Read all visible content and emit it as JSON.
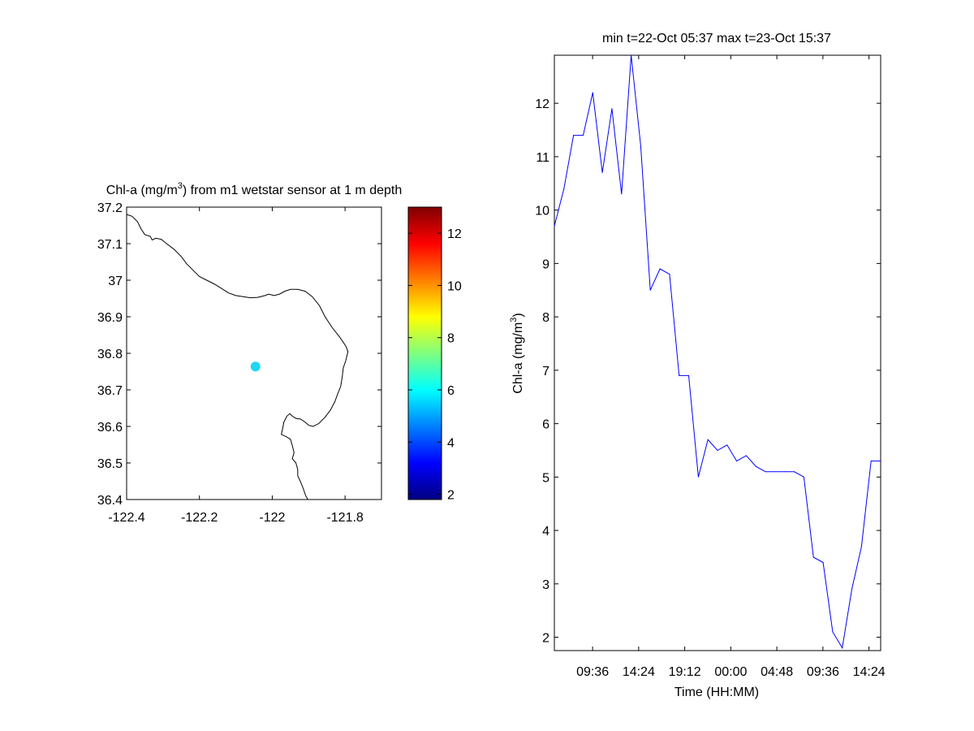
{
  "colors": {
    "line": "#0000ff",
    "marker": "#1fd7f5",
    "coastline": "#000000",
    "axes": "#000000",
    "background": "#ffffff"
  },
  "map": {
    "title_main": "Chl-a (mg/m",
    "title_sup": "3",
    "title_rest": ") from m1 wetstar sensor at 1 m depth",
    "xlim": [
      -122.4,
      -121.7
    ],
    "ylim": [
      36.4,
      37.2
    ],
    "x_ticks": [
      "-122.4",
      "-122.2",
      "-122",
      "-121.8"
    ],
    "y_ticks": [
      "37.2",
      "37.1",
      "37",
      "36.9",
      "36.8",
      "36.7",
      "36.6",
      "36.5",
      "36.4"
    ],
    "station": {
      "lon": -122.046,
      "lat": 36.764,
      "value": 5.8
    },
    "coastline": [
      [
        -122.4,
        37.18
      ],
      [
        -122.385,
        37.175
      ],
      [
        -122.37,
        37.16
      ],
      [
        -122.36,
        37.14
      ],
      [
        -122.35,
        37.125
      ],
      [
        -122.335,
        37.12
      ],
      [
        -122.33,
        37.11
      ],
      [
        -122.32,
        37.115
      ],
      [
        -122.305,
        37.112
      ],
      [
        -122.29,
        37.1
      ],
      [
        -122.27,
        37.085
      ],
      [
        -122.25,
        37.065
      ],
      [
        -122.235,
        37.045
      ],
      [
        -122.215,
        37.025
      ],
      [
        -122.2,
        37.01
      ],
      [
        -122.18,
        37.0
      ],
      [
        -122.16,
        36.99
      ],
      [
        -122.14,
        36.978
      ],
      [
        -122.12,
        36.965
      ],
      [
        -122.1,
        36.958
      ],
      [
        -122.08,
        36.955
      ],
      [
        -122.06,
        36.952
      ],
      [
        -122.04,
        36.953
      ],
      [
        -122.02,
        36.958
      ],
      [
        -122.01,
        36.962
      ],
      [
        -121.995,
        36.958
      ],
      [
        -121.98,
        36.962
      ],
      [
        -121.965,
        36.97
      ],
      [
        -121.95,
        36.975
      ],
      [
        -121.93,
        36.975
      ],
      [
        -121.91,
        36.97
      ],
      [
        -121.89,
        36.955
      ],
      [
        -121.87,
        36.93
      ],
      [
        -121.855,
        36.9
      ],
      [
        -121.835,
        36.87
      ],
      [
        -121.815,
        36.845
      ],
      [
        -121.798,
        36.82
      ],
      [
        -121.792,
        36.805
      ],
      [
        -121.798,
        36.78
      ],
      [
        -121.805,
        36.76
      ],
      [
        -121.808,
        36.735
      ],
      [
        -121.812,
        36.71
      ],
      [
        -121.82,
        36.69
      ],
      [
        -121.828,
        36.668
      ],
      [
        -121.84,
        36.645
      ],
      [
        -121.855,
        36.625
      ],
      [
        -121.872,
        36.608
      ],
      [
        -121.888,
        36.6
      ],
      [
        -121.9,
        36.603
      ],
      [
        -121.91,
        36.612
      ],
      [
        -121.922,
        36.62
      ],
      [
        -121.935,
        36.622
      ],
      [
        -121.945,
        36.628
      ],
      [
        -121.952,
        36.635
      ],
      [
        -121.96,
        36.628
      ],
      [
        -121.968,
        36.612
      ],
      [
        -121.972,
        36.592
      ],
      [
        -121.975,
        36.578
      ],
      [
        -121.962,
        36.572
      ],
      [
        -121.95,
        36.565
      ],
      [
        -121.945,
        36.548
      ],
      [
        -121.94,
        36.528
      ],
      [
        -121.945,
        36.512
      ],
      [
        -121.935,
        36.5
      ],
      [
        -121.93,
        36.482
      ],
      [
        -121.93,
        36.465
      ],
      [
        -121.922,
        36.448
      ],
      [
        -121.915,
        36.43
      ],
      [
        -121.908,
        36.41
      ],
      [
        -121.902,
        36.4
      ]
    ]
  },
  "colorbar": {
    "range": [
      1.8,
      13.0
    ],
    "ticks": [
      "12",
      "10",
      "8",
      "6",
      "4",
      "2"
    ]
  },
  "chart_data": {
    "type": "line",
    "title": "min t=22-Oct 05:37 max t=23-Oct 15:37",
    "xlabel": "Time (HH:MM)",
    "ylabel_main": "Chl-a (mg/m",
    "ylabel_sup": "3",
    "ylabel_end": ")",
    "x_unit": "hours",
    "xlim": [
      5.617,
      39.617
    ],
    "ylim": [
      1.75,
      12.9
    ],
    "x_ticks": [
      {
        "t": 9.6,
        "label": "09:36"
      },
      {
        "t": 14.4,
        "label": "14:24"
      },
      {
        "t": 19.2,
        "label": "19:12"
      },
      {
        "t": 24.0,
        "label": "00:00"
      },
      {
        "t": 28.8,
        "label": "04:48"
      },
      {
        "t": 33.6,
        "label": "09:36"
      },
      {
        "t": 38.4,
        "label": "14:24"
      }
    ],
    "y_ticks": [
      "2",
      "3",
      "4",
      "5",
      "6",
      "7",
      "8",
      "9",
      "10",
      "11",
      "12"
    ],
    "x": [
      5.617,
      6.617,
      7.617,
      8.617,
      9.617,
      10.617,
      11.617,
      12.617,
      13.617,
      14.617,
      15.617,
      16.617,
      17.617,
      18.617,
      19.617,
      20.617,
      21.617,
      22.617,
      23.617,
      24.617,
      25.617,
      26.617,
      27.617,
      28.617,
      29.617,
      30.617,
      31.617,
      32.617,
      33.617,
      34.617,
      35.617,
      36.617,
      37.617,
      38.617,
      39.617
    ],
    "y": [
      9.7,
      10.4,
      11.4,
      11.4,
      12.2,
      10.7,
      11.9,
      10.3,
      12.9,
      11.2,
      8.5,
      8.9,
      8.8,
      6.9,
      6.9,
      5.0,
      5.7,
      5.5,
      5.6,
      5.3,
      5.4,
      5.2,
      5.1,
      5.1,
      5.1,
      5.1,
      5.0,
      3.5,
      3.4,
      2.1,
      1.8,
      2.9,
      3.7,
      5.3,
      5.3
    ]
  }
}
